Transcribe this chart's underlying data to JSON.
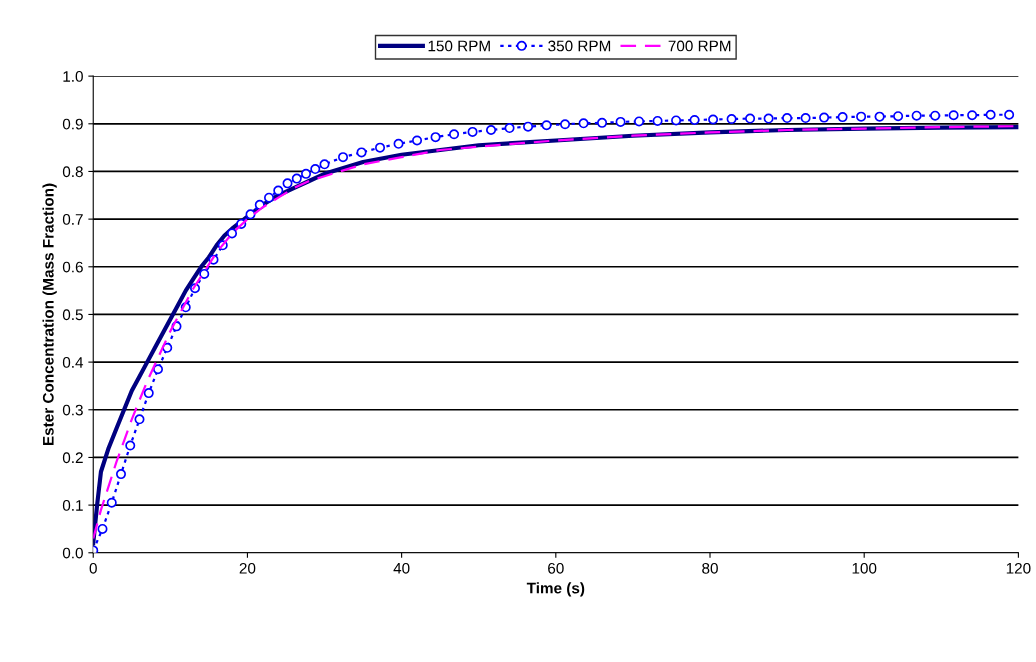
{
  "chart_data": {
    "type": "line",
    "xlabel": "Time (s)",
    "ylabel": "Ester Concentration (Mass Fraction)",
    "xlim": [
      0,
      120
    ],
    "xticks": [
      0,
      20,
      40,
      60,
      80,
      100,
      120
    ],
    "ylim": [
      0,
      1
    ],
    "yticks": [
      {
        "value": 0,
        "label": "0.0"
      },
      {
        "value": 0.1,
        "label": "0.1"
      },
      {
        "value": 0.2,
        "label": "0.2"
      },
      {
        "value": 0.3,
        "label": "0.3"
      },
      {
        "value": 0.4,
        "label": "0.4"
      },
      {
        "value": 0.5,
        "label": "0.5"
      },
      {
        "value": 0.6,
        "label": "0.6"
      },
      {
        "value": 0.7,
        "label": "0.7"
      },
      {
        "value": 0.8,
        "label": "0.8"
      },
      {
        "value": 0.9,
        "label": "0.9"
      },
      {
        "value": 1,
        "label": "1.0"
      }
    ],
    "grid": "y",
    "legend": "top",
    "series": [
      {
        "name": "150 RPM",
        "color": "#000080",
        "marker": "none",
        "line_style": "solid",
        "x": [
          0,
          0.5,
          1,
          2,
          3,
          4,
          5,
          6,
          7,
          8,
          9,
          10,
          11,
          12,
          13,
          14,
          15,
          16,
          17,
          18,
          20,
          22,
          24,
          26,
          28,
          30,
          35,
          40,
          45,
          50,
          60,
          70,
          80,
          90,
          100,
          110,
          120
        ],
        "values": [
          0.02,
          0.1,
          0.17,
          0.22,
          0.26,
          0.3,
          0.34,
          0.37,
          0.4,
          0.43,
          0.46,
          0.49,
          0.52,
          0.55,
          0.575,
          0.6,
          0.62,
          0.645,
          0.665,
          0.68,
          0.705,
          0.73,
          0.75,
          0.765,
          0.78,
          0.795,
          0.82,
          0.835,
          0.845,
          0.855,
          0.865,
          0.875,
          0.882,
          0.887,
          0.89,
          0.892,
          0.893
        ]
      },
      {
        "name": "350 RPM",
        "color": "#0000ff",
        "marker": "circle",
        "line_style": "dotted",
        "x": [
          0,
          1.2,
          2.4,
          3.6,
          4.8,
          6,
          7.2,
          8.4,
          9.6,
          10.8,
          12,
          13.2,
          14.4,
          15.6,
          16.8,
          18,
          19.2,
          20.4,
          21.6,
          22.8,
          24,
          25.2,
          26.4,
          27.6,
          28.8,
          30,
          32.4,
          34.8,
          37.2,
          39.6,
          42,
          44.4,
          46.8,
          49.2,
          51.6,
          54,
          56.4,
          58.8,
          61.2,
          63.6,
          66,
          68.4,
          70.8,
          73.2,
          75.6,
          78,
          80.4,
          82.8,
          85.2,
          87.6,
          90,
          92.4,
          94.8,
          97.2,
          99.6,
          102,
          104.4,
          106.8,
          109.2,
          111.6,
          114,
          116.4,
          118.8
        ],
        "values": [
          0.005,
          0.05,
          0.105,
          0.165,
          0.225,
          0.28,
          0.335,
          0.385,
          0.43,
          0.475,
          0.515,
          0.555,
          0.585,
          0.615,
          0.645,
          0.67,
          0.69,
          0.71,
          0.73,
          0.745,
          0.76,
          0.775,
          0.785,
          0.795,
          0.805,
          0.815,
          0.83,
          0.84,
          0.85,
          0.858,
          0.865,
          0.872,
          0.878,
          0.883,
          0.887,
          0.891,
          0.894,
          0.897,
          0.899,
          0.901,
          0.902,
          0.904,
          0.905,
          0.906,
          0.907,
          0.908,
          0.909,
          0.91,
          0.911,
          0.911,
          0.912,
          0.912,
          0.913,
          0.914,
          0.915,
          0.915,
          0.916,
          0.917,
          0.917,
          0.918,
          0.918,
          0.919,
          0.919
        ]
      },
      {
        "name": "700 RPM",
        "color": "#ff00ff",
        "marker": "none",
        "line_style": "dashed",
        "x": [
          0,
          1,
          2,
          3,
          4,
          5,
          6,
          7,
          8,
          9,
          10,
          11,
          12,
          13,
          14,
          15,
          16,
          17,
          18,
          20,
          22,
          24,
          26,
          28,
          30,
          35,
          40,
          45,
          50,
          60,
          70,
          80,
          90,
          100,
          110,
          120
        ],
        "values": [
          0.03,
          0.09,
          0.14,
          0.19,
          0.235,
          0.28,
          0.32,
          0.36,
          0.395,
          0.43,
          0.465,
          0.495,
          0.525,
          0.555,
          0.58,
          0.605,
          0.63,
          0.65,
          0.67,
          0.7,
          0.725,
          0.745,
          0.765,
          0.78,
          0.79,
          0.815,
          0.83,
          0.845,
          0.852,
          0.865,
          0.875,
          0.882,
          0.887,
          0.89,
          0.893,
          0.895
        ]
      }
    ]
  }
}
